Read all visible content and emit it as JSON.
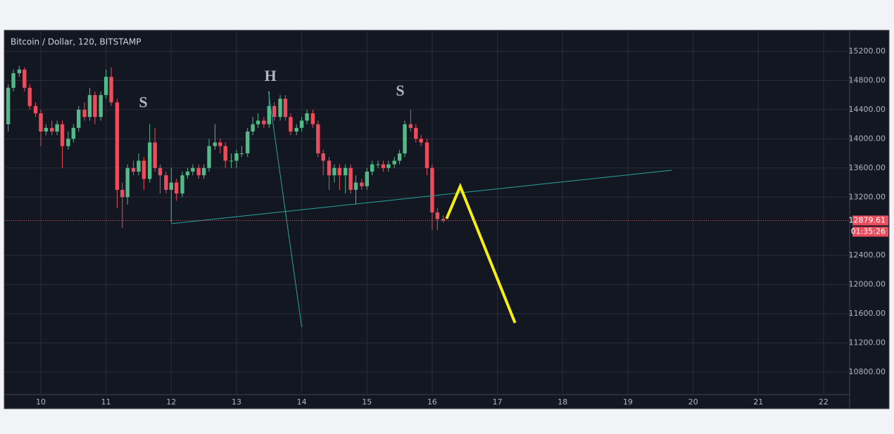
{
  "chart_data": {
    "type": "candlestick",
    "title": "Bitcoin / Dollar, 120, BITSTAMP",
    "x": [
      9.5,
      9.58,
      9.67,
      9.75,
      9.83,
      9.92,
      10,
      10.08,
      10.17,
      10.25,
      10.33,
      10.42,
      10.5,
      10.58,
      10.67,
      10.75,
      10.83,
      10.92,
      11,
      11.08,
      11.17,
      11.25,
      11.33,
      11.42,
      11.5,
      11.58,
      11.67,
      11.75,
      11.83,
      11.92,
      12,
      12.08,
      12.17,
      12.25,
      12.33,
      12.42,
      12.5,
      12.58,
      12.67,
      12.75,
      12.83,
      12.92,
      13,
      13.08,
      13.17,
      13.25,
      13.33,
      13.42,
      13.5,
      13.58,
      13.67,
      13.75,
      13.83,
      13.92,
      14,
      14.08,
      14.17,
      14.25,
      14.33,
      14.42,
      14.5,
      14.58,
      14.67,
      14.75,
      14.83,
      14.92,
      15,
      15.08,
      15.17,
      15.25,
      15.33,
      15.42,
      15.5,
      15.58,
      15.67,
      15.75,
      15.83,
      15.92,
      16,
      16.08,
      16.17
    ],
    "open": [
      14200,
      14700,
      14900,
      14950,
      14700,
      14450,
      14350,
      14100,
      14150,
      14100,
      14200,
      13900,
      14000,
      14150,
      14400,
      14300,
      14600,
      14300,
      14600,
      14850,
      14500,
      13300,
      13200,
      13600,
      13550,
      13700,
      13450,
      13950,
      13600,
      13500,
      13300,
      13400,
      13250,
      13500,
      13550,
      13600,
      13500,
      13600,
      13900,
      13950,
      13900,
      13700,
      13700,
      13800,
      13800,
      14100,
      14200,
      14250,
      14200,
      14450,
      14300,
      14550,
      14300,
      14100,
      14150,
      14250,
      14350,
      14200,
      13800,
      13700,
      13500,
      13600,
      13500,
      13600,
      13300,
      13400,
      13350,
      13550,
      13650,
      13650,
      13600,
      13650,
      13700,
      13800,
      14200,
      14150,
      14000,
      13950,
      13600,
      12990,
      12900
    ],
    "high": [
      14750,
      14950,
      15000,
      14980,
      14750,
      14500,
      14400,
      14200,
      14250,
      14250,
      14250,
      14100,
      14200,
      14450,
      14500,
      14700,
      14650,
      14650,
      14950,
      14980,
      14550,
      13400,
      13650,
      13700,
      13800,
      13750,
      14200,
      14150,
      13650,
      13550,
      13600,
      13450,
      13550,
      13600,
      13650,
      13650,
      13650,
      14000,
      14200,
      14000,
      13950,
      13800,
      13850,
      13900,
      14150,
      14300,
      14350,
      14300,
      14650,
      14500,
      14600,
      14600,
      14350,
      14200,
      14300,
      14400,
      14400,
      14250,
      13850,
      13750,
      13650,
      13650,
      13650,
      13650,
      13500,
      13450,
      13600,
      13700,
      13700,
      13700,
      13700,
      13750,
      13850,
      14250,
      14400,
      14200,
      14050,
      14000,
      13650,
      13050,
      12950
    ],
    "low": [
      14100,
      14650,
      14850,
      14650,
      14400,
      14300,
      13900,
      14050,
      14050,
      14050,
      13600,
      13850,
      13950,
      14100,
      14250,
      14250,
      14200,
      14250,
      14550,
      14450,
      13050,
      12780,
      13100,
      13500,
      13500,
      13300,
      13400,
      13550,
      13250,
      13250,
      12850,
      13150,
      13200,
      13450,
      13500,
      13450,
      13450,
      13550,
      13850,
      13800,
      13600,
      13600,
      13600,
      13750,
      13750,
      14050,
      14150,
      14150,
      14150,
      14250,
      14250,
      14250,
      14050,
      14050,
      14100,
      14200,
      14150,
      13750,
      13500,
      13300,
      13400,
      13300,
      13250,
      13250,
      13100,
      13300,
      13300,
      13500,
      13600,
      13550,
      13550,
      13600,
      13650,
      13750,
      14100,
      13950,
      13900,
      13500,
      12750,
      12750,
      12850
    ],
    "close": [
      14700,
      14900,
      14950,
      14700,
      14450,
      14350,
      14100,
      14150,
      14100,
      14200,
      13900,
      14000,
      14150,
      14400,
      14300,
      14600,
      14300,
      14600,
      14850,
      14500,
      13300,
      13200,
      13600,
      13550,
      13700,
      13450,
      13950,
      13600,
      13500,
      13300,
      13400,
      13250,
      13500,
      13550,
      13600,
      13500,
      13600,
      13900,
      13950,
      13900,
      13700,
      13700,
      13800,
      13800,
      14100,
      14200,
      14250,
      14200,
      14450,
      14300,
      14550,
      14300,
      14100,
      14150,
      14250,
      14350,
      14200,
      13800,
      13700,
      13500,
      13600,
      13500,
      13600,
      13300,
      13400,
      13350,
      13550,
      13650,
      13650,
      13600,
      13650,
      13700,
      13800,
      14200,
      14150,
      14000,
      13950,
      13600,
      12990,
      12900,
      12880
    ],
    "up_color": "#53b987",
    "down_color": "#eb4d5c",
    "xlim": [
      9.45,
      22.4
    ],
    "ylim": [
      10501,
      15470
    ],
    "xticks": [
      10,
      11,
      12,
      13,
      14,
      15,
      16,
      17,
      18,
      19,
      20,
      21,
      22
    ],
    "yticks": [
      {
        "value": 15200,
        "label": "15200.00"
      },
      {
        "value": 14800,
        "label": "14800.00"
      },
      {
        "value": 14400,
        "label": "14400.00"
      },
      {
        "value": 14000,
        "label": "14000.00"
      },
      {
        "value": 13600,
        "label": "13600.00"
      },
      {
        "value": 13200,
        "label": "13200.00"
      },
      {
        "value": 12400,
        "label": "12400.00"
      },
      {
        "value": 12000,
        "label": "12000.00"
      },
      {
        "value": 11600,
        "label": "11600.00"
      },
      {
        "value": 11200,
        "label": "11200.00"
      },
      {
        "value": 10800,
        "label": "10800.00"
      }
    ],
    "grid": true,
    "last_price": 12879.61,
    "timer": "01:35:26",
    "price_color": "#eb4d5c",
    "lines": [
      {
        "color": "#26a69a",
        "x": [
          12.0,
          19.67
        ],
        "y": [
          12836,
          13569
        ]
      },
      {
        "color": "#26a69a",
        "x": [
          13.49,
          14.0
        ],
        "y": [
          14650,
          11418
        ]
      },
      {
        "color": "#f7ef12",
        "x": [
          16.22,
          16.43,
          17.27
        ],
        "y": [
          12904,
          13347,
          11476
        ]
      }
    ],
    "annotations": [
      {
        "text": "S",
        "x": 11.57,
        "y": 14480
      },
      {
        "text": "H",
        "x": 13.52,
        "y": 14843
      },
      {
        "text": "S",
        "x": 15.51,
        "y": 14640
      }
    ],
    "annotation_color": "#f5e50b"
  }
}
